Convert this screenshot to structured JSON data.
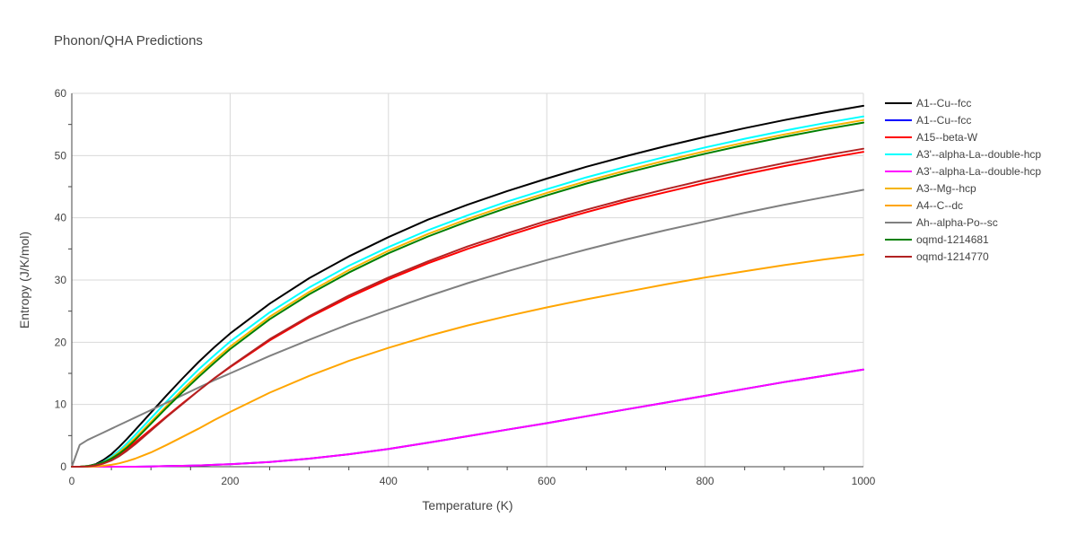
{
  "chart_data": {
    "type": "line",
    "title": "Phonon/QHA Predictions",
    "xlabel": "Temperature (K)",
    "ylabel": "Entropy (J/K/mol)",
    "xlim": [
      0,
      1000
    ],
    "ylim": [
      0,
      60
    ],
    "xticks": [
      0,
      200,
      400,
      600,
      800,
      1000
    ],
    "yticks": [
      0,
      10,
      20,
      30,
      40,
      50,
      60
    ],
    "grid": true,
    "legend_position": "right",
    "x": [
      0,
      10,
      20,
      30,
      40,
      50,
      60,
      70,
      80,
      100,
      120,
      140,
      160,
      180,
      200,
      250,
      300,
      350,
      400,
      450,
      500,
      550,
      600,
      650,
      700,
      750,
      800,
      850,
      900,
      950,
      1000
    ],
    "series": [
      {
        "name": "A1--Cu--fcc",
        "color": "#000000",
        "values": [
          0,
          0,
          0.1,
          0.4,
          1.1,
          2.0,
          3.2,
          4.5,
          5.9,
          8.7,
          11.5,
          14.2,
          16.8,
          19.2,
          21.4,
          26.2,
          30.3,
          33.8,
          36.9,
          39.7,
          42.1,
          44.3,
          46.3,
          48.2,
          49.9,
          51.5,
          53.0,
          54.4,
          55.7,
          56.9,
          58.0
        ]
      },
      {
        "name": "A1--Cu--fcc",
        "color": "#0000ff",
        "values": [
          0,
          0,
          0,
          0,
          0,
          0,
          0,
          0,
          0,
          0.05,
          0.1,
          0.15,
          0.2,
          0.3,
          0.4,
          0.75,
          1.3,
          2.0,
          2.85,
          3.85,
          4.9,
          5.95,
          7.0,
          8.1,
          9.2,
          10.3,
          11.4,
          12.5,
          13.6,
          14.6,
          15.6
        ]
      },
      {
        "name": "A15--beta-W",
        "color": "#ff0000",
        "values": [
          0,
          0,
          0.05,
          0.2,
          0.6,
          1.2,
          2.0,
          2.9,
          3.9,
          6.0,
          8.1,
          10.2,
          12.2,
          14.2,
          16.0,
          20.3,
          24.0,
          27.2,
          30.1,
          32.7,
          35.0,
          37.1,
          39.1,
          40.9,
          42.6,
          44.1,
          45.6,
          47.0,
          48.3,
          49.5,
          50.6
        ]
      },
      {
        "name": "A3'--alpha-La--double-hcp",
        "color": "#00ffff",
        "values": [
          0,
          0,
          0.1,
          0.3,
          0.8,
          1.6,
          2.6,
          3.8,
          5.1,
          7.8,
          10.5,
          13.1,
          15.6,
          17.9,
          20.1,
          24.8,
          28.8,
          32.3,
          35.3,
          38.0,
          40.4,
          42.6,
          44.6,
          46.5,
          48.2,
          49.8,
          51.3,
          52.7,
          54.0,
          55.2,
          56.3
        ]
      },
      {
        "name": "A3'--alpha-La--double-hcp",
        "color": "#ff00ff",
        "values": [
          0,
          0,
          0,
          0,
          0,
          0,
          0,
          0,
          0,
          0.05,
          0.1,
          0.15,
          0.2,
          0.3,
          0.4,
          0.75,
          1.3,
          2.0,
          2.85,
          3.85,
          4.9,
          5.95,
          7.0,
          8.1,
          9.2,
          10.3,
          11.4,
          12.5,
          13.6,
          14.6,
          15.6
        ]
      },
      {
        "name": "A3--Mg--hcp",
        "color": "#f5b400",
        "values": [
          0,
          0,
          0.1,
          0.3,
          0.7,
          1.4,
          2.3,
          3.4,
          4.6,
          7.2,
          9.8,
          12.4,
          14.8,
          17.1,
          19.3,
          24.1,
          28.1,
          31.6,
          34.7,
          37.4,
          39.8,
          42.0,
          44.0,
          45.9,
          47.6,
          49.2,
          50.7,
          52.1,
          53.4,
          54.6,
          55.7
        ]
      },
      {
        "name": "A4--C--dc",
        "color": "#ffa500",
        "values": [
          0,
          0,
          0,
          0.05,
          0.15,
          0.3,
          0.55,
          0.9,
          1.3,
          2.3,
          3.5,
          4.8,
          6.1,
          7.5,
          8.8,
          11.9,
          14.6,
          17.0,
          19.1,
          21.0,
          22.7,
          24.2,
          25.6,
          26.9,
          28.1,
          29.3,
          30.4,
          31.4,
          32.4,
          33.3,
          34.1
        ]
      },
      {
        "name": "Ah--alpha-Po--sc",
        "color": "#808080",
        "values": [
          0,
          3.5,
          4.3,
          4.9,
          5.5,
          6.1,
          6.7,
          7.3,
          7.9,
          9.1,
          10.3,
          11.5,
          12.7,
          13.9,
          15.0,
          17.8,
          20.4,
          22.9,
          25.2,
          27.4,
          29.5,
          31.4,
          33.2,
          34.9,
          36.5,
          38.0,
          39.4,
          40.8,
          42.1,
          43.3,
          44.5
        ]
      },
      {
        "name": "oqmd-1214681",
        "color": "#008000",
        "values": [
          0,
          0,
          0.1,
          0.3,
          0.7,
          1.3,
          2.1,
          3.1,
          4.3,
          6.9,
          9.5,
          12.0,
          14.4,
          16.7,
          18.9,
          23.7,
          27.7,
          31.2,
          34.3,
          37.0,
          39.4,
          41.6,
          43.6,
          45.5,
          47.2,
          48.8,
          50.3,
          51.7,
          53.0,
          54.2,
          55.3
        ]
      },
      {
        "name": "oqmd-1214770",
        "color": "#b22222",
        "values": [
          0,
          0,
          0.05,
          0.2,
          0.5,
          1.0,
          1.7,
          2.6,
          3.6,
          5.8,
          8.0,
          10.1,
          12.2,
          14.2,
          16.1,
          20.5,
          24.2,
          27.5,
          30.4,
          33.0,
          35.4,
          37.5,
          39.5,
          41.3,
          43.0,
          44.6,
          46.1,
          47.5,
          48.8,
          50.0,
          51.1
        ]
      }
    ]
  }
}
